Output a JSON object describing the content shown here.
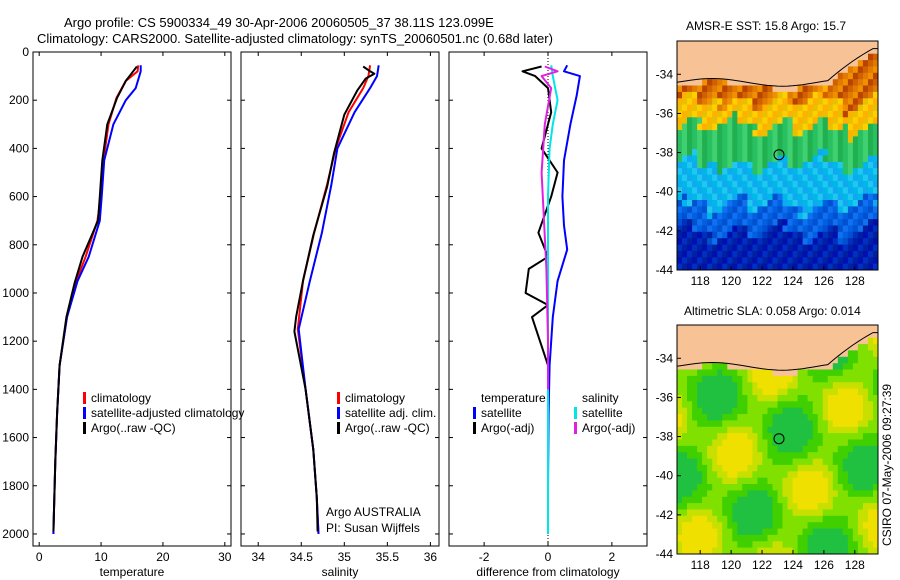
{
  "header": {
    "title_line1": "Argo profile: CS 5900334_49 30-Apr-2006 20060505_37 38.11S 123.099E",
    "title_line2": "Climatology: CARS2000. Satellite-adjusted climatology: synTS_20060501.nc (0.68d later)"
  },
  "chart_data": [
    {
      "type": "line",
      "xlabel": "temperature",
      "xlim": [
        -1,
        31
      ],
      "xticks": [
        0,
        10,
        20,
        30
      ],
      "ylim": [
        2050,
        0
      ],
      "yticks": [
        0,
        200,
        400,
        600,
        800,
        1000,
        1200,
        1400,
        1600,
        1800,
        2000
      ],
      "legend": {
        "position": "bottom-right",
        "entries": [
          "climatology",
          "satellite-adjusted climatology",
          "Argo(..raw -QC)"
        ]
      },
      "series": [
        {
          "name": "climatology",
          "color": "#ff0000",
          "x": [
            16.0,
            15.9,
            14.0,
            12.5,
            11.2,
            10.4,
            10.0,
            9.4,
            7.5,
            6.0,
            4.5,
            3.3,
            2.9,
            2.6,
            2.4,
            2.3
          ],
          "y": [
            55,
            80,
            120,
            190,
            300,
            450,
            600,
            700,
            850,
            950,
            1100,
            1300,
            1500,
            1700,
            1900,
            2000
          ]
        },
        {
          "name": "satellite-adjusted climatology",
          "color": "#0000ff",
          "x": [
            16.4,
            16.4,
            15.6,
            14.0,
            12.0,
            10.5,
            10.1,
            9.8,
            8.0,
            6.2,
            4.5,
            3.3,
            2.9,
            2.6,
            2.4,
            2.3
          ],
          "y": [
            55,
            80,
            150,
            200,
            300,
            450,
            600,
            700,
            850,
            950,
            1100,
            1300,
            1500,
            1700,
            1900,
            2000
          ]
        },
        {
          "name": "Argo(..raw -QC)",
          "color": "#000000",
          "x": [
            15.8,
            15.2,
            14.0,
            12.6,
            11.0,
            10.2,
            9.8,
            9.5,
            7.0,
            5.7,
            4.4,
            3.3,
            2.9,
            2.6,
            2.4,
            2.3
          ],
          "y": [
            60,
            80,
            120,
            190,
            300,
            450,
            600,
            700,
            850,
            960,
            1100,
            1300,
            1500,
            1700,
            1900,
            1990
          ]
        }
      ]
    },
    {
      "type": "line",
      "xlabel": "salinity",
      "xlim": [
        33.8,
        36.1
      ],
      "xticks": [
        34,
        34.5,
        35,
        35.5,
        36
      ],
      "xtick_labels": [
        "34",
        "34.5",
        "35",
        "35.5",
        "36"
      ],
      "ylim": [
        2050,
        0
      ],
      "legend": {
        "position": "bottom-right",
        "entries": [
          "climatology",
          "satellite adj. clim.",
          "Argo(..raw -QC)"
        ]
      },
      "annotations": [
        "Argo AUSTRALIA",
        "PI: Susan Wijffels"
      ],
      "series": [
        {
          "name": "climatology",
          "color": "#ff0000",
          "x": [
            35.3,
            35.28,
            35.22,
            35.05,
            34.9,
            34.8,
            34.65,
            34.52,
            34.46,
            34.55,
            34.64,
            34.68,
            34.7
          ],
          "y": [
            55,
            100,
            150,
            250,
            400,
            550,
            750,
            950,
            1150,
            1400,
            1650,
            1850,
            2000
          ]
        },
        {
          "name": "satellite adj. clim.",
          "color": "#0000ff",
          "x": [
            35.4,
            35.38,
            35.3,
            35.12,
            34.92,
            34.85,
            34.74,
            34.6,
            34.47,
            34.55,
            34.64,
            34.68,
            34.7
          ],
          "y": [
            55,
            100,
            150,
            250,
            400,
            550,
            750,
            950,
            1150,
            1400,
            1650,
            1850,
            2000
          ]
        },
        {
          "name": "Argo(..raw -QC)",
          "color": "#000000",
          "x": [
            35.22,
            35.3,
            35.35,
            35.25,
            35.15,
            35.0,
            34.88,
            34.8,
            34.64,
            34.52,
            34.44,
            34.42,
            34.55,
            34.64,
            34.68,
            34.69
          ],
          "y": [
            60,
            80,
            90,
            110,
            160,
            260,
            420,
            560,
            760,
            950,
            1100,
            1160,
            1400,
            1650,
            1850,
            1990
          ]
        }
      ]
    },
    {
      "type": "line",
      "xlabel": "difference from climatology",
      "xlim": [
        -3.1,
        3.1
      ],
      "xticks": [
        -2,
        0,
        2
      ],
      "ylim": [
        2050,
        0
      ],
      "legend": {
        "position": "bottom-right",
        "entries": [
          "temperature",
          "satellite",
          "Argo(-adj)",
          "salinity",
          "satellite",
          "Argo(-adj)"
        ]
      },
      "series": [
        {
          "name": "temperature satellite",
          "color": "#0000ff",
          "x": [
            0.6,
            0.5,
            1.0,
            0.9,
            0.7,
            0.5,
            0.45,
            0.5,
            0.6,
            0.3,
            0.15,
            0.05,
            0.02,
            0.0,
            0.0
          ],
          "y": [
            55,
            80,
            100,
            180,
            300,
            450,
            600,
            720,
            820,
            950,
            1100,
            1300,
            1500,
            1800,
            2000
          ]
        },
        {
          "name": "temperature Argo(-adj)",
          "color": "#000000",
          "x": [
            -0.2,
            -0.8,
            -0.4,
            0.0,
            0.1,
            -0.2,
            0.3,
            0.1,
            -0.3,
            0.0,
            -0.6,
            -0.7,
            0.0,
            -0.5,
            0.0,
            0.0,
            0.0
          ],
          "y": [
            60,
            80,
            100,
            150,
            250,
            400,
            500,
            600,
            750,
            850,
            900,
            1000,
            1050,
            1100,
            1300,
            1600,
            1990
          ]
        },
        {
          "name": "salinity satellite",
          "color": "#00e5e5",
          "x": [
            0.1,
            0.15,
            0.3,
            0.15,
            0.05,
            0.0,
            0.0,
            0.0
          ],
          "y": [
            55,
            100,
            200,
            300,
            400,
            600,
            1000,
            2000
          ]
        },
        {
          "name": "salinity Argo(-adj)",
          "color": "#e020e0",
          "x": [
            -0.1,
            0.3,
            -0.2,
            0.1,
            -0.1,
            -0.2,
            -0.05,
            0.0,
            0.0
          ],
          "y": [
            60,
            80,
            100,
            150,
            300,
            500,
            900,
            1200,
            1400
          ]
        }
      ]
    }
  ],
  "map_sst": {
    "title": "AMSR-E SST: 15.8 Argo: 15.7",
    "xticks": [
      "118",
      "120",
      "122",
      "124",
      "126",
      "128"
    ],
    "yticks": [
      "-34",
      "-36",
      "-38",
      "-40",
      "-42",
      "-44"
    ],
    "xlim": [
      116.5,
      129.5
    ],
    "ylim": [
      -44,
      -32.3
    ],
    "float_lon": 123.099,
    "float_lat": -38.11
  },
  "map_sla": {
    "title": "Altimetric SLA: 0.058 Argo: 0.014",
    "xticks": [
      "118",
      "120",
      "122",
      "124",
      "126",
      "128"
    ],
    "yticks": [
      "-34",
      "-36",
      "-38",
      "-40",
      "-42",
      "-44"
    ],
    "xlim": [
      116.5,
      129.5
    ],
    "ylim": [
      -44,
      -32.3
    ],
    "float_lon": 123.099,
    "float_lat": -38.11
  },
  "footer": "CSIRO 07-May-2006 09:27:39",
  "colors": {
    "land": "#f7c296",
    "circle": "#000000"
  }
}
